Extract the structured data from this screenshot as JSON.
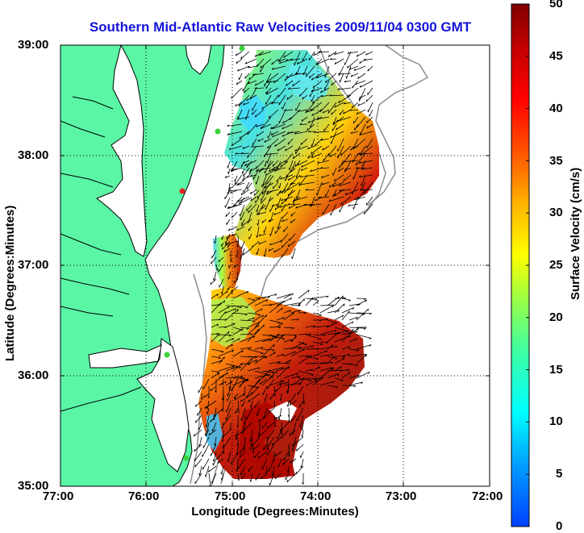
{
  "title": "Southern Mid-Atlantic Raw Velocities 2009/11/04 0300 GMT",
  "x_axis": {
    "label": "Longitude (Degrees:Minutes)",
    "ticks": [
      "77:00",
      "76:00",
      "75:00",
      "74:00",
      "73:00",
      "72:00"
    ]
  },
  "y_axis": {
    "label": "Latitude (Degrees:Minutes)",
    "ticks": [
      "39:00",
      "38:00",
      "37:00",
      "36:00",
      "35:00"
    ]
  },
  "colorbar": {
    "label": "Surface Velocity (cm/s)",
    "ticks": [
      "50",
      "45",
      "40",
      "35",
      "30",
      "25",
      "20",
      "15",
      "10",
      "5",
      "0"
    ],
    "range": [
      0,
      50
    ]
  },
  "map": {
    "land_color": "#5af5a5",
    "water_color": "#ffffff",
    "coastline_color": "#000000",
    "bathymetry_color": "#8c8c8c",
    "grid": "dotted"
  },
  "stations": [
    {
      "color": "#3ad23a"
    },
    {
      "color": "#3ad23a"
    },
    {
      "color": "#e52020"
    },
    {
      "color": "#3ad23a"
    },
    {
      "color": "#3ad23a"
    }
  ]
}
